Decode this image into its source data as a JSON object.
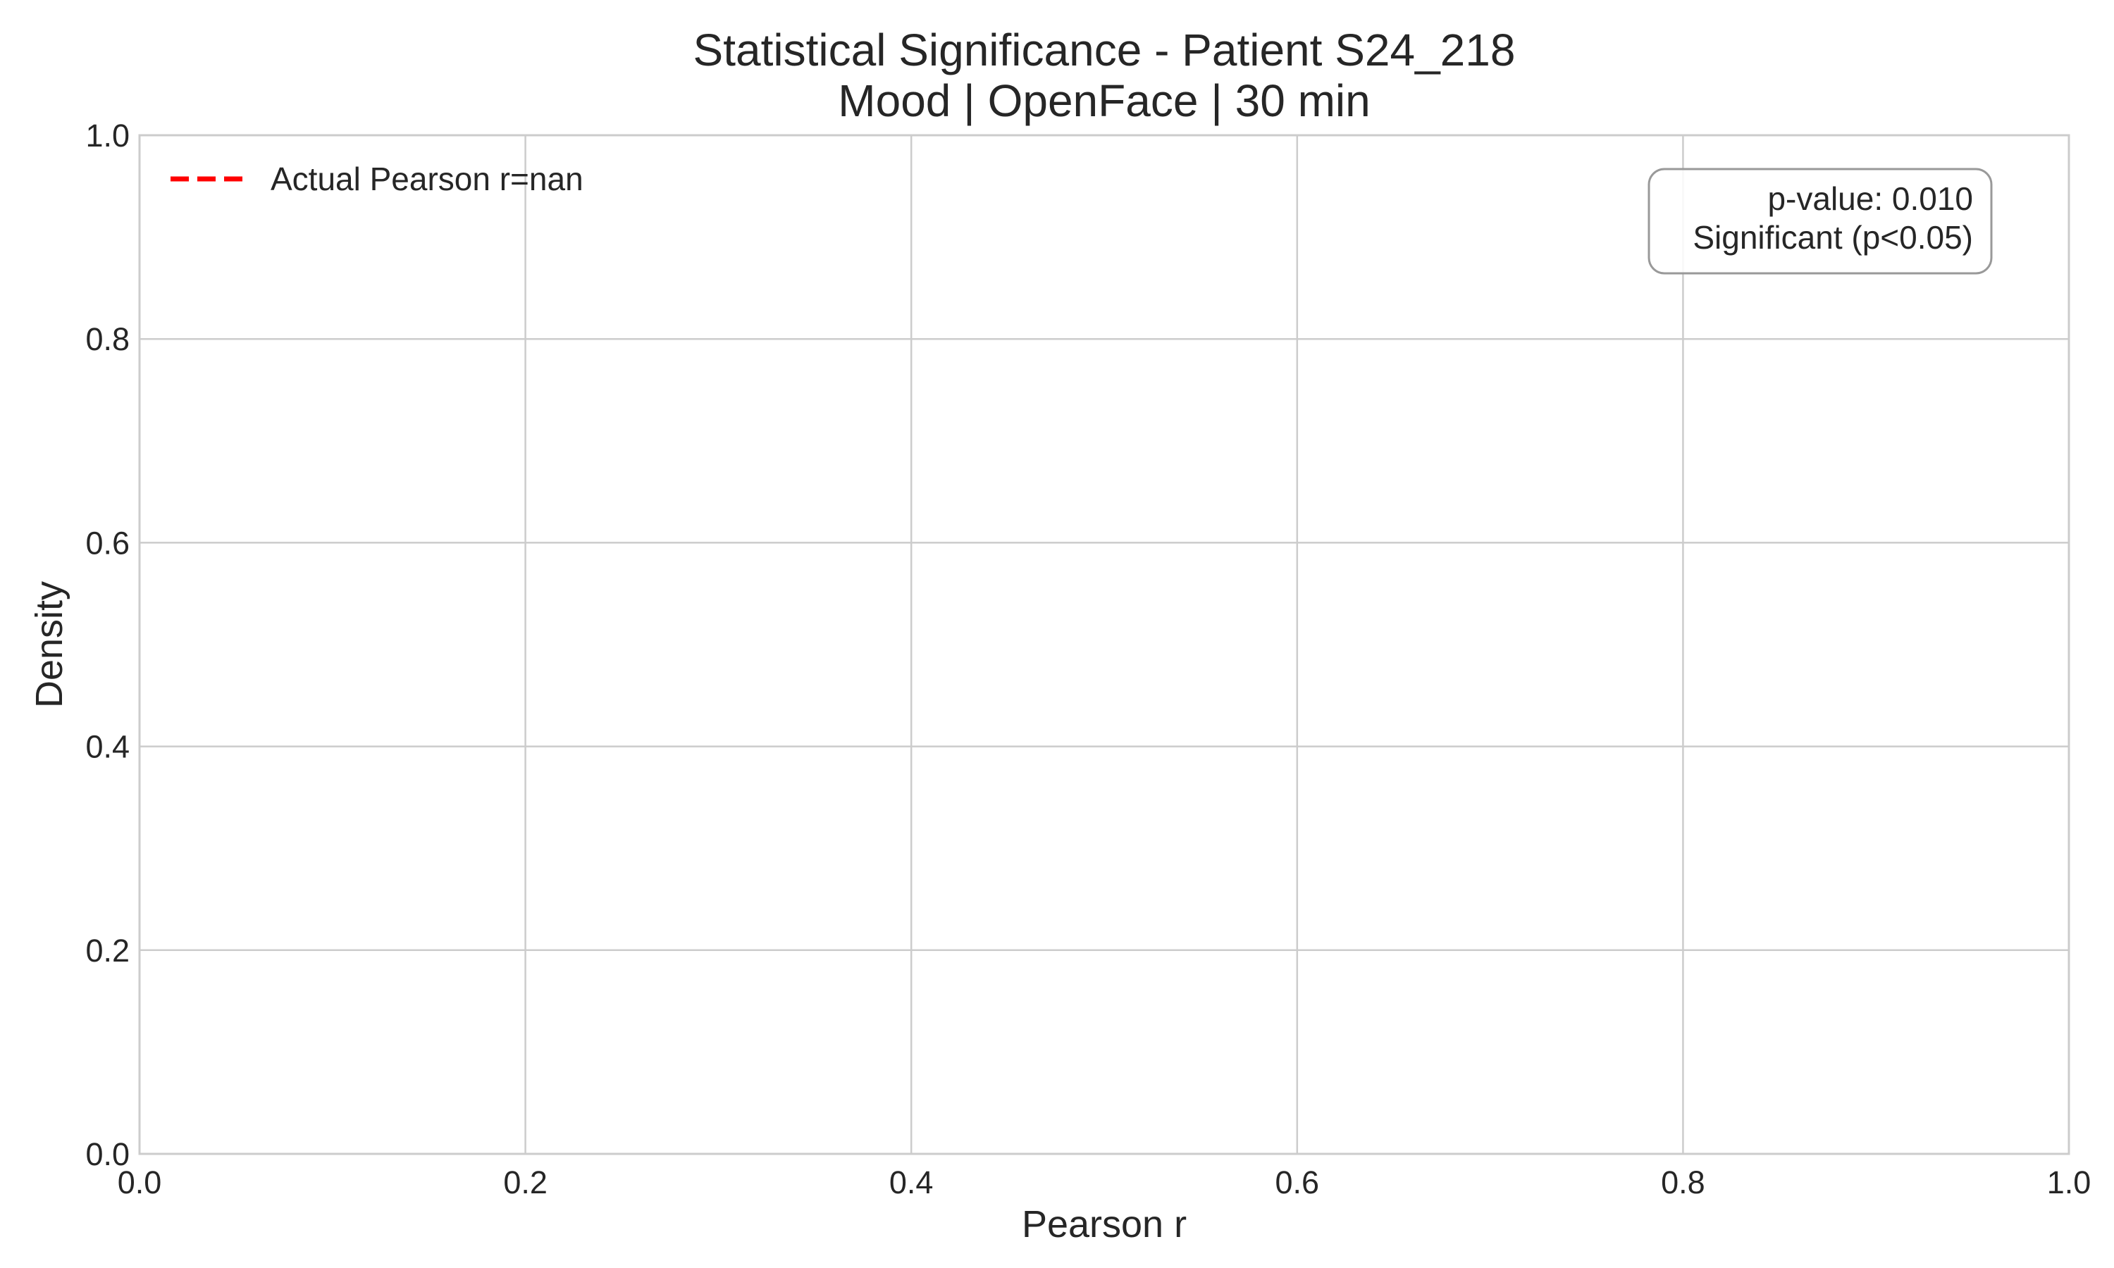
{
  "chart_data": {
    "type": "line",
    "title": "Statistical Significance - Patient S24_218",
    "subtitle": "Mood | OpenFace | 30 min",
    "xlabel": "Pearson r",
    "ylabel": "Density",
    "xlim": [
      0.0,
      1.0
    ],
    "ylim": [
      0.0,
      1.0
    ],
    "xticks": [
      "0.0",
      "0.2",
      "0.4",
      "0.6",
      "0.8",
      "1.0"
    ],
    "yticks": [
      "0.0",
      "0.2",
      "0.4",
      "0.6",
      "0.8",
      "1.0"
    ],
    "xtick_values": [
      0.0,
      0.2,
      0.4,
      0.6,
      0.8,
      1.0
    ],
    "ytick_values": [
      0.0,
      0.2,
      0.4,
      0.6,
      0.8,
      1.0
    ],
    "grid": true,
    "legend": {
      "placement": "upper-left",
      "entries": [
        {
          "label": "Actual Pearson r=nan",
          "color": "#ff0000",
          "style": "dashed"
        }
      ]
    },
    "annotation": {
      "placement": "upper-right",
      "lines": [
        "p-value: 0.010",
        "Significant (p<0.05)"
      ]
    },
    "series": []
  }
}
